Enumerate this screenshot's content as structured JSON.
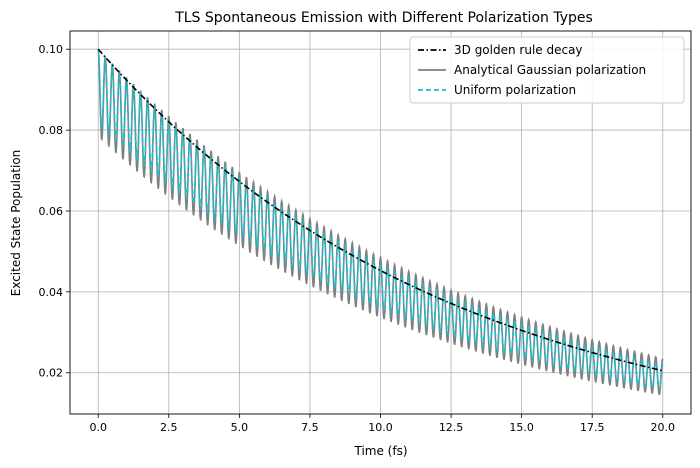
{
  "chart_data": {
    "type": "line",
    "title": "TLS Spontaneous Emission with Different Polarization Types",
    "xlabel": "Time (fs)",
    "ylabel": "Excited State Population",
    "xlim": [
      -1.0,
      21.0
    ],
    "ylim": [
      0.0098,
      0.1045
    ],
    "grid": true,
    "legend_position": "top-right",
    "x_ticks": [
      0.0,
      2.5,
      5.0,
      7.5,
      10.0,
      12.5,
      15.0,
      17.5,
      20.0
    ],
    "x_tick_labels": [
      "0.0",
      "2.5",
      "5.0",
      "7.5",
      "10.0",
      "12.5",
      "15.0",
      "17.5",
      "20.0"
    ],
    "y_ticks": [
      0.02,
      0.04,
      0.06,
      0.08,
      0.1
    ],
    "y_tick_labels": [
      "0.02",
      "0.04",
      "0.06",
      "0.08",
      "0.10"
    ],
    "series": [
      {
        "name": "3D golden rule decay",
        "kind": "exponential",
        "x_range": [
          0,
          20
        ],
        "y_start": 0.1,
        "y_end": 0.0205,
        "color": "#000000",
        "dash": "dashdot"
      },
      {
        "name": "Analytical Gaussian polarization",
        "kind": "oscillating-decay",
        "x_range": [
          0,
          20
        ],
        "envelope_top_start": 0.1,
        "envelope_top_end": 0.0235,
        "envelope_bottom_start": 0.0785,
        "envelope_bottom_end": 0.0145,
        "oscillations": 80,
        "color": "#808080",
        "dash": "solid"
      },
      {
        "name": "Uniform polarization",
        "kind": "oscillating-decay",
        "x_range": [
          0,
          20
        ],
        "envelope_top_start": 0.0995,
        "envelope_top_end": 0.022,
        "envelope_bottom_start": 0.0815,
        "envelope_bottom_end": 0.0158,
        "oscillations": 80,
        "color": "#17becf",
        "dash": "dashed"
      }
    ]
  }
}
